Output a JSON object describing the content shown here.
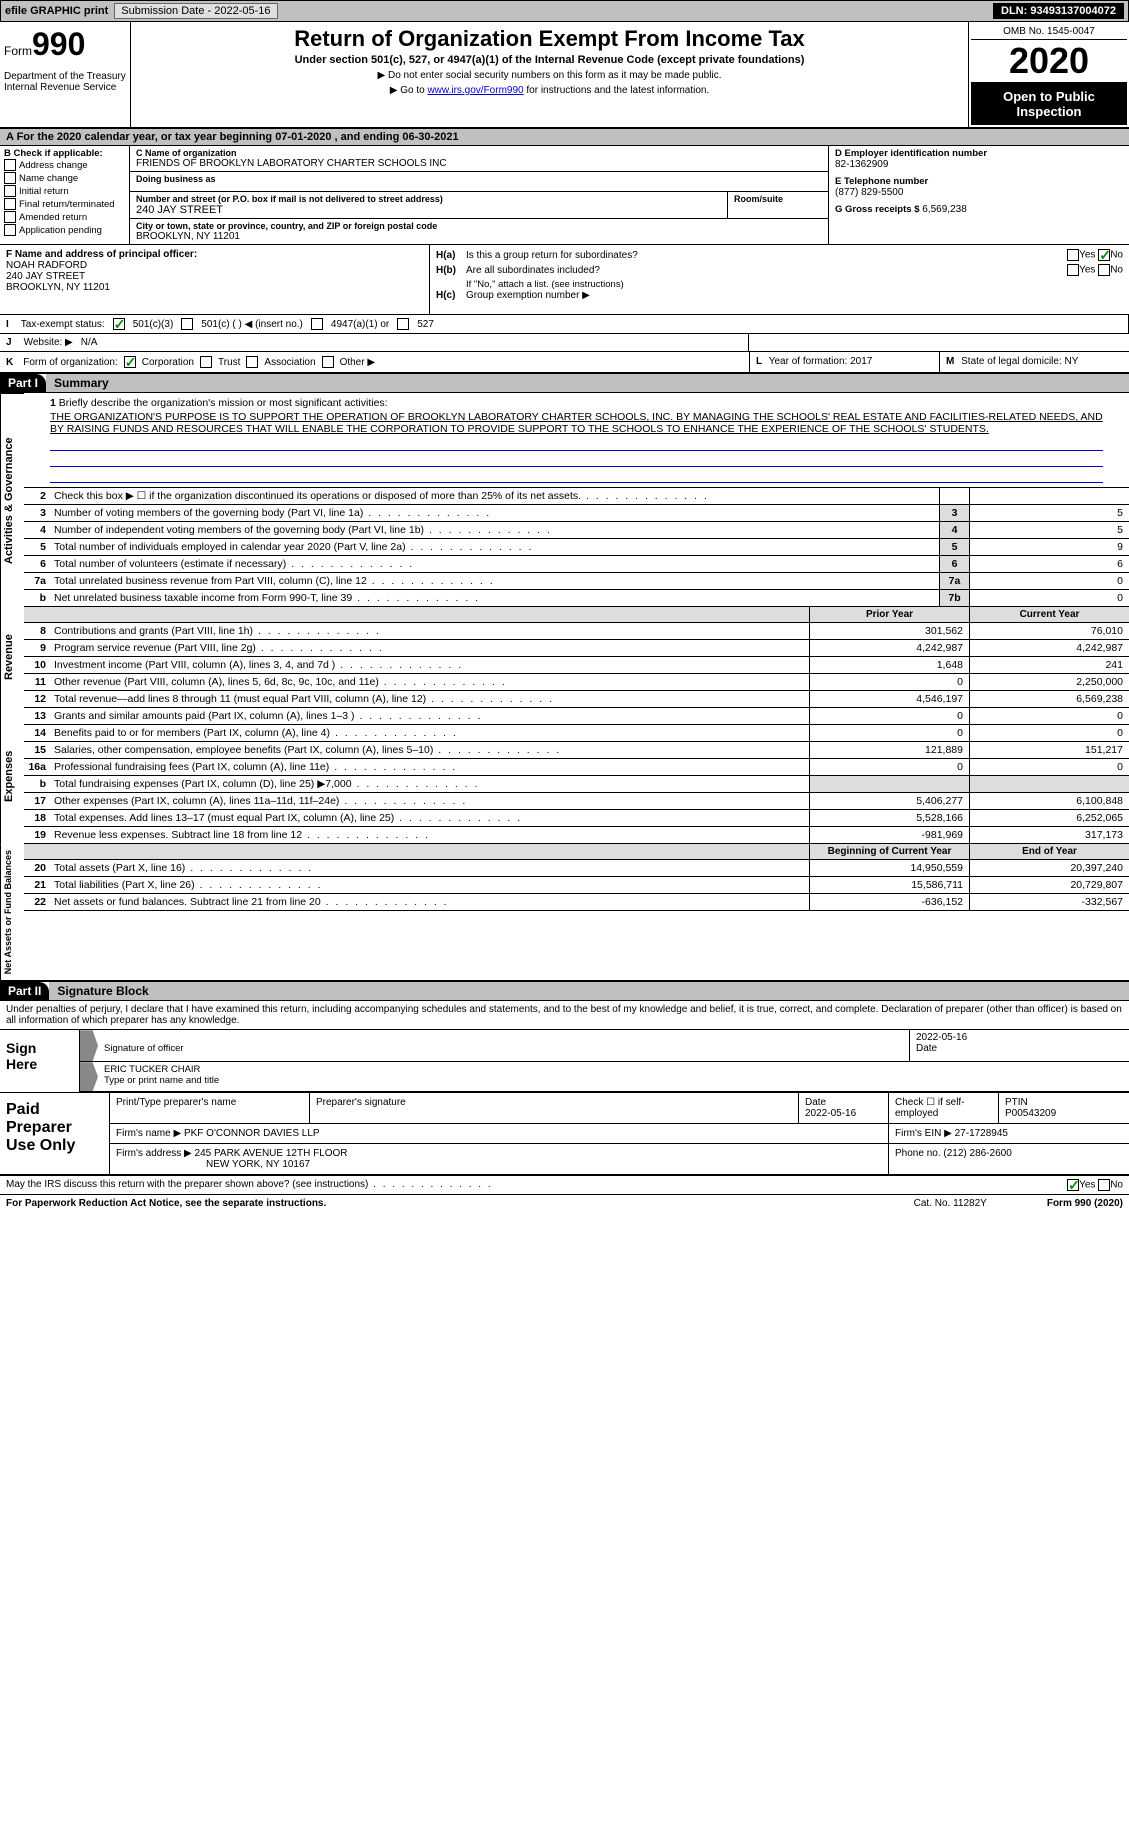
{
  "topbar": {
    "efile": "efile GRAPHIC print",
    "sub_label": "Submission Date - ",
    "sub_date": "2022-05-16",
    "dln": "DLN: 93493137004072"
  },
  "header": {
    "form_label": "Form",
    "form_num": "990",
    "dept": "Department of the Treasury\nInternal Revenue Service",
    "title": "Return of Organization Exempt From Income Tax",
    "subtitle": "Under section 501(c), 527, or 4947(a)(1) of the Internal Revenue Code (except private foundations)",
    "note1": "▶ Do not enter social security numbers on this form as it may be made public.",
    "note2": "▶ Go to www.irs.gov/Form990 for instructions and the latest information.",
    "omb": "OMB No. 1545-0047",
    "year": "2020",
    "inspect": "Open to Public Inspection"
  },
  "period": "A For the 2020 calendar year, or tax year beginning 07-01-2020   , and ending 06-30-2021",
  "boxB": {
    "lbl": "B Check if applicable:",
    "items": [
      "Address change",
      "Name change",
      "Initial return",
      "Final return/terminated",
      "Amended return",
      "Application pending"
    ]
  },
  "boxC": {
    "name_lbl": "C Name of organization",
    "name": "FRIENDS OF BROOKLYN LABORATORY CHARTER SCHOOLS INC",
    "dba_lbl": "Doing business as",
    "dba": "",
    "addr_lbl": "Number and street (or P.O. box if mail is not delivered to street address)",
    "addr": "240 JAY STREET",
    "room_lbl": "Room/suite",
    "city_lbl": "City or town, state or province, country, and ZIP or foreign postal code",
    "city": "BROOKLYN, NY  11201"
  },
  "boxD": {
    "lbl": "D Employer identification number",
    "val": "82-1362909"
  },
  "boxE": {
    "lbl": "E Telephone number",
    "val": "(877) 829-5500"
  },
  "boxG": {
    "lbl": "G Gross receipts $",
    "val": "6,569,238"
  },
  "boxF": {
    "lbl": "F  Name and address of principal officer:",
    "name": "NOAH RADFORD",
    "addr1": "240 JAY STREET",
    "addr2": "BROOKLYN, NY  11201"
  },
  "boxH": {
    "a_lbl": "H(a)",
    "a_txt": "Is this a group return for subordinates?",
    "b_lbl": "H(b)",
    "b_txt": "Are all subordinates included?",
    "b_note": "If \"No,\" attach a list. (see instructions)",
    "c_lbl": "H(c)",
    "c_txt": "Group exemption number ▶"
  },
  "boxI": {
    "lbl": "I",
    "txt": "Tax-exempt status:",
    "opts": [
      "501(c)(3)",
      "501(c) (  ) ◀ (insert no.)",
      "4947(a)(1) or",
      "527"
    ]
  },
  "boxJ": {
    "lbl": "J",
    "txt": "Website: ▶",
    "val": "N/A"
  },
  "boxK": {
    "lbl": "K",
    "txt": "Form of organization:",
    "opts": [
      "Corporation",
      "Trust",
      "Association",
      "Other ▶"
    ]
  },
  "boxL": {
    "lbl": "L",
    "txt": "Year of formation:",
    "val": "2017"
  },
  "boxM": {
    "lbl": "M",
    "txt": "State of legal domicile:",
    "val": "NY"
  },
  "part1": {
    "hdr": "Part I",
    "title": "Summary"
  },
  "mission": {
    "num": "1",
    "lbl": "Briefly describe the organization's mission or most significant activities:",
    "txt": "THE ORGANIZATION'S PURPOSE IS TO SUPPORT THE OPERATION OF BROOKLYN LABORATORY CHARTER SCHOOLS, INC. BY MANAGING THE SCHOOLS' REAL ESTATE AND FACILITIES-RELATED NEEDS, AND BY RAISING FUNDS AND RESOURCES THAT WILL ENABLE THE CORPORATION TO PROVIDE SUPPORT TO THE SCHOOLS TO ENHANCE THE EXPERIENCE OF THE SCHOOLS' STUDENTS."
  },
  "tabs": {
    "act_gov": "Activities & Governance",
    "revenue": "Revenue",
    "expenses": "Expenses",
    "net": "Net Assets or Fund Balances"
  },
  "lines_ag": [
    {
      "n": "2",
      "txt": "Check this box ▶ ☐ if the organization discontinued its operations or disposed of more than 25% of its net assets.",
      "box": "",
      "val": ""
    },
    {
      "n": "3",
      "txt": "Number of voting members of the governing body (Part VI, line 1a)",
      "box": "3",
      "val": "5"
    },
    {
      "n": "4",
      "txt": "Number of independent voting members of the governing body (Part VI, line 1b)",
      "box": "4",
      "val": "5"
    },
    {
      "n": "5",
      "txt": "Total number of individuals employed in calendar year 2020 (Part V, line 2a)",
      "box": "5",
      "val": "9"
    },
    {
      "n": "6",
      "txt": "Total number of volunteers (estimate if necessary)",
      "box": "6",
      "val": "6"
    },
    {
      "n": "7a",
      "txt": "Total unrelated business revenue from Part VIII, column (C), line 12",
      "box": "7a",
      "val": "0"
    },
    {
      "n": "b",
      "txt": "Net unrelated business taxable income from Form 990-T, line 39",
      "box": "7b",
      "val": "0"
    }
  ],
  "fin_hdr": {
    "py": "Prior Year",
    "cy": "Current Year"
  },
  "lines_rev": [
    {
      "n": "8",
      "txt": "Contributions and grants (Part VIII, line 1h)",
      "py": "301,562",
      "cy": "76,010"
    },
    {
      "n": "9",
      "txt": "Program service revenue (Part VIII, line 2g)",
      "py": "4,242,987",
      "cy": "4,242,987"
    },
    {
      "n": "10",
      "txt": "Investment income (Part VIII, column (A), lines 3, 4, and 7d )",
      "py": "1,648",
      "cy": "241"
    },
    {
      "n": "11",
      "txt": "Other revenue (Part VIII, column (A), lines 5, 6d, 8c, 9c, 10c, and 11e)",
      "py": "0",
      "cy": "2,250,000"
    },
    {
      "n": "12",
      "txt": "Total revenue—add lines 8 through 11 (must equal Part VIII, column (A), line 12)",
      "py": "4,546,197",
      "cy": "6,569,238"
    }
  ],
  "lines_exp": [
    {
      "n": "13",
      "txt": "Grants and similar amounts paid (Part IX, column (A), lines 1–3 )",
      "py": "0",
      "cy": "0"
    },
    {
      "n": "14",
      "txt": "Benefits paid to or for members (Part IX, column (A), line 4)",
      "py": "0",
      "cy": "0"
    },
    {
      "n": "15",
      "txt": "Salaries, other compensation, employee benefits (Part IX, column (A), lines 5–10)",
      "py": "121,889",
      "cy": "151,217"
    },
    {
      "n": "16a",
      "txt": "Professional fundraising fees (Part IX, column (A), line 11e)",
      "py": "0",
      "cy": "0"
    },
    {
      "n": "b",
      "txt": "Total fundraising expenses (Part IX, column (D), line 25) ▶7,000",
      "py": "",
      "cy": ""
    },
    {
      "n": "17",
      "txt": "Other expenses (Part IX, column (A), lines 11a–11d, 11f–24e)",
      "py": "5,406,277",
      "cy": "6,100,848"
    },
    {
      "n": "18",
      "txt": "Total expenses. Add lines 13–17 (must equal Part IX, column (A), line 25)",
      "py": "5,528,166",
      "cy": "6,252,065"
    },
    {
      "n": "19",
      "txt": "Revenue less expenses. Subtract line 18 from line 12",
      "py": "-981,969",
      "cy": "317,173"
    }
  ],
  "net_hdr": {
    "py": "Beginning of Current Year",
    "cy": "End of Year"
  },
  "lines_net": [
    {
      "n": "20",
      "txt": "Total assets (Part X, line 16)",
      "py": "14,950,559",
      "cy": "20,397,240"
    },
    {
      "n": "21",
      "txt": "Total liabilities (Part X, line 26)",
      "py": "15,586,711",
      "cy": "20,729,807"
    },
    {
      "n": "22",
      "txt": "Net assets or fund balances. Subtract line 21 from line 20",
      "py": "-636,152",
      "cy": "-332,567"
    }
  ],
  "part2": {
    "hdr": "Part II",
    "title": "Signature Block"
  },
  "sig": {
    "decl": "Under penalties of perjury, I declare that I have examined this return, including accompanying schedules and statements, and to the best of my knowledge and belief, it is true, correct, and complete. Declaration of preparer (other than officer) is based on all information of which preparer has any knowledge.",
    "here": "Sign Here",
    "sig_lbl": "Signature of officer",
    "date_lbl": "Date",
    "date": "2022-05-16",
    "name": "ERIC TUCKER CHAIR",
    "name_lbl": "Type or print name and title"
  },
  "prep": {
    "title": "Paid Preparer Use Only",
    "r1": {
      "a": "Print/Type preparer's name",
      "b": "Preparer's signature",
      "c_lbl": "Date",
      "c": "2022-05-16",
      "d": "Check ☐ if self-employed",
      "e_lbl": "PTIN",
      "e": "P00543209"
    },
    "r2": {
      "lbl": "Firm's name    ▶",
      "val": "PKF O'CONNOR DAVIES LLP",
      "ein_lbl": "Firm's EIN ▶",
      "ein": "27-1728945"
    },
    "r3": {
      "lbl": "Firm's address ▶",
      "val1": "245 PARK AVENUE 12TH FLOOR",
      "val2": "NEW YORK, NY  10167",
      "ph_lbl": "Phone no.",
      "ph": "(212) 286-2600"
    }
  },
  "discuss": "May the IRS discuss this return with the preparer shown above? (see instructions)",
  "footer": {
    "paperwork": "For Paperwork Reduction Act Notice, see the separate instructions.",
    "cat": "Cat. No. 11282Y",
    "form": "Form 990 (2020)"
  }
}
